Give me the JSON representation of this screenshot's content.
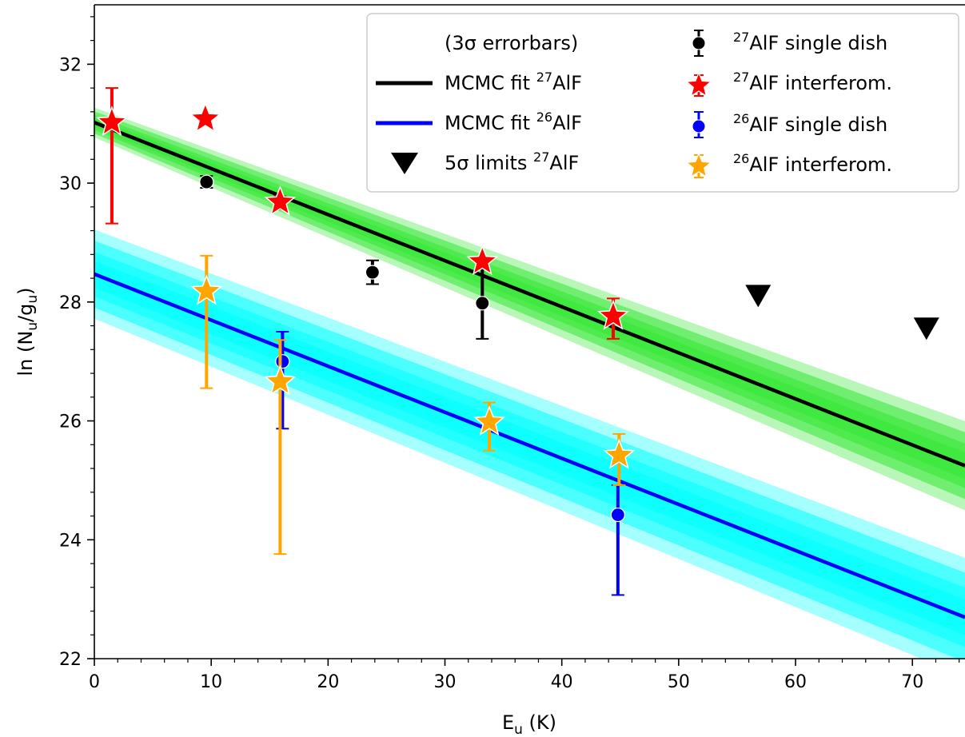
{
  "chart_data": {
    "type": "scatter",
    "xlabel_main": "E",
    "xlabel_sub": "u",
    "xlabel_unit": " (K)",
    "ylabel_pre": "ln (N",
    "ylabel_sub1": "u",
    "ylabel_mid": "/g",
    "ylabel_sub2": "u",
    "ylabel_post": ")",
    "xlim": [
      0,
      74.5
    ],
    "ylim": [
      22,
      33
    ],
    "x_ticks": [
      0,
      10,
      20,
      30,
      40,
      50,
      60,
      70
    ],
    "y_ticks": [
      22,
      24,
      26,
      28,
      30,
      32
    ],
    "x_tick_labels": [
      "0",
      "10",
      "20",
      "30",
      "40",
      "50",
      "60",
      "70"
    ],
    "y_tick_labels": [
      "22",
      "24",
      "26",
      "28",
      "30",
      "32"
    ],
    "grid": false,
    "legend_position": "top-right",
    "fits": [
      {
        "key": "fit27",
        "intercept": 31.02,
        "slope": -0.0775,
        "color": "#000000",
        "band_color": "#33e833",
        "band_width_at_0": 0.25,
        "band_width_at_end": 0.75
      },
      {
        "key": "fit26",
        "intercept": 28.47,
        "slope": -0.0775,
        "color": "#0000ff",
        "band_color": "#00ffff",
        "band_width_at_0": 0.75,
        "band_width_at_end": 1.0
      }
    ],
    "series": [
      {
        "key": "alf27_single_dish",
        "marker": "circle",
        "color": "#000000",
        "points": [
          {
            "x": 9.6,
            "y": 30.02,
            "err": 0.1
          },
          {
            "x": 23.8,
            "y": 28.5,
            "err": 0.2
          },
          {
            "x": 33.2,
            "y": 27.98,
            "err": 0.6
          }
        ]
      },
      {
        "key": "alf27_interferom",
        "marker": "star",
        "color": "#ff0000",
        "points": [
          {
            "x": 1.5,
            "y": 31.02,
            "err_lo": 1.7,
            "err_hi": 0.58
          },
          {
            "x": 9.5,
            "y": 31.08,
            "err_lo": 0.02,
            "err_hi": 0.02
          },
          {
            "x": 15.9,
            "y": 29.68,
            "err_lo": 0.12,
            "err_hi": 0.1
          },
          {
            "x": 33.2,
            "y": 28.68,
            "err_lo": 0.05,
            "err_hi": 0.05
          },
          {
            "x": 44.4,
            "y": 27.76,
            "err_lo": 0.38,
            "err_hi": 0.3
          }
        ]
      },
      {
        "key": "alf26_single_dish",
        "marker": "circle",
        "color": "#0000ff",
        "points": [
          {
            "x": 16.1,
            "y": 27.0,
            "err_lo": 1.13,
            "err_hi": 0.5
          },
          {
            "x": 44.8,
            "y": 24.42,
            "err_lo": 1.35,
            "err_hi": 0.5
          }
        ]
      },
      {
        "key": "alf26_interferom",
        "marker": "star",
        "color": "#ffa500",
        "points": [
          {
            "x": 9.6,
            "y": 28.18,
            "err_lo": 1.63,
            "err_hi": 0.6
          },
          {
            "x": 15.9,
            "y": 26.66,
            "err_lo": 2.9,
            "err_hi": 0.7
          },
          {
            "x": 33.8,
            "y": 25.98,
            "err_lo": 0.48,
            "err_hi": 0.33
          },
          {
            "x": 44.9,
            "y": 25.42,
            "err_lo": 0.5,
            "err_hi": 0.36
          }
        ]
      },
      {
        "key": "alf27_5sigma_limits",
        "marker": "triangle-down",
        "color": "#000000",
        "points": [
          {
            "x": 56.8,
            "y": 28.1
          },
          {
            "x": 71.2,
            "y": 27.55
          }
        ]
      }
    ],
    "legend": {
      "errorbars": "(3σ errorbars)",
      "fit27": {
        "pre": "MCMC fit ",
        "sup": "27",
        "post": "AlF"
      },
      "fit26": {
        "pre": "MCMC fit ",
        "sup": "26",
        "post": "AlF"
      },
      "limits": {
        "pre": "5σ limits ",
        "sup": "27",
        "post": "AlF"
      },
      "alf27_single_dish": {
        "pre": "",
        "sup": "27",
        "post": "AlF single dish"
      },
      "alf27_interferom": {
        "pre": "",
        "sup": "27",
        "post": "AlF interferom."
      },
      "alf26_single_dish": {
        "pre": "",
        "sup": "26",
        "post": "AlF single dish"
      },
      "alf26_interferom": {
        "pre": "",
        "sup": "26",
        "post": "AlF interferom."
      }
    }
  }
}
